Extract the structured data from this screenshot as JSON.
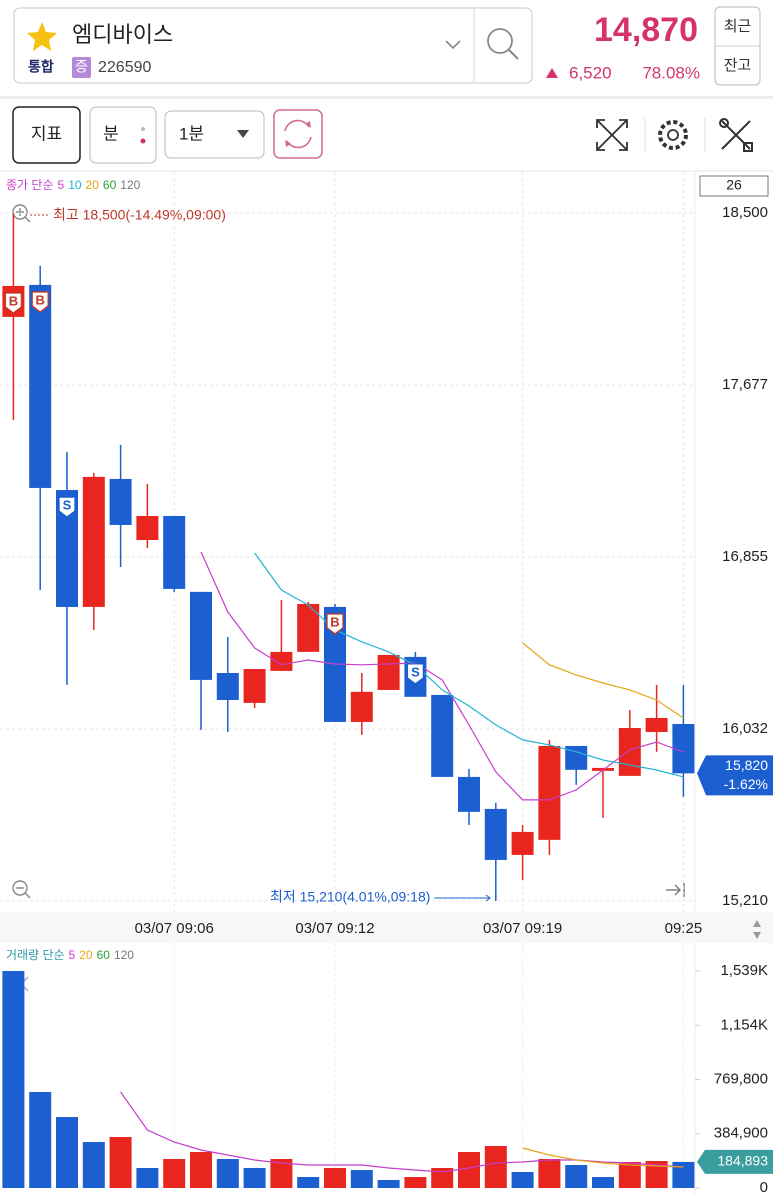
{
  "header": {
    "name": "엠디바이스",
    "market": "통합",
    "badge": "증",
    "code": "226590",
    "price": "14,870",
    "change": "6,520",
    "change_rate": "78.08%",
    "buttons": [
      "최근",
      "잔고"
    ]
  },
  "toolbar": {
    "indicator": "지표",
    "unit": "분",
    "interval": "1분"
  },
  "chart_data": [
    {
      "type": "candlestick",
      "legend_label": "종가 단순",
      "count_label": "26",
      "categories": [
        null,
        null,
        null,
        null,
        null,
        null,
        "03/07 09:06",
        null,
        null,
        null,
        null,
        null,
        "03/07 09:12",
        null,
        null,
        null,
        null,
        null,
        null,
        "03/07 09:19",
        null,
        null,
        null,
        null,
        null,
        "09:25"
      ],
      "open": [
        18003,
        18156,
        17175,
        16616,
        17228,
        16936,
        17051,
        16688,
        16300,
        16157,
        16310,
        16401,
        16616,
        16066,
        16219,
        16377,
        16195,
        15803,
        15650,
        15430,
        15502,
        15951,
        15832,
        15808,
        16018,
        16056
      ],
      "high": [
        18500,
        18247,
        17357,
        17257,
        17391,
        17204,
        17051,
        16688,
        16472,
        16319,
        16649,
        16640,
        16630,
        16300,
        16386,
        16401,
        16195,
        15841,
        15679,
        15573,
        15980,
        15951,
        15846,
        16123,
        16243,
        16243
      ],
      "low": [
        17510,
        16697,
        16243,
        16506,
        16807,
        16898,
        16688,
        16028,
        16018,
        16133,
        16310,
        16401,
        16066,
        16004,
        16219,
        16186,
        15803,
        15573,
        15210,
        15310,
        15430,
        15765,
        15607,
        15808,
        15923,
        15708
      ],
      "close": [
        18151,
        17185,
        16616,
        17238,
        17008,
        17051,
        16702,
        16267,
        16171,
        16319,
        16401,
        16630,
        16066,
        16210,
        16386,
        16186,
        15803,
        15636,
        15406,
        15540,
        15951,
        15837,
        15846,
        16037,
        16085,
        15820
      ],
      "up_color": "#e8251f",
      "down_color": "#1c5fd0",
      "series": [
        {
          "name": "5",
          "color": "#c63fc9",
          "values": [
            null,
            null,
            null,
            null,
            null,
            null,
            null,
            16879,
            16592,
            16420,
            16339,
            16362,
            16343,
            16339,
            16343,
            16348,
            16267,
            16052,
            15827,
            15693,
            15693,
            15741,
            15836,
            15932,
            15970,
            15922
          ]
        },
        {
          "name": "10",
          "color": "#25b4d2",
          "values": [
            null,
            null,
            null,
            null,
            null,
            null,
            null,
            null,
            null,
            16874,
            16697,
            16625,
            16506,
            16449,
            16401,
            16339,
            16219,
            16142,
            16052,
            15980,
            15956,
            15923,
            15884,
            15860,
            15836,
            15803
          ]
        },
        {
          "name": "20",
          "color": "#e8a317",
          "values": [
            null,
            null,
            null,
            null,
            null,
            null,
            null,
            null,
            null,
            null,
            null,
            null,
            null,
            null,
            null,
            null,
            null,
            null,
            null,
            16444,
            16339,
            16291,
            16252,
            16219,
            16171,
            16085
          ]
        },
        {
          "name": "60",
          "color": "#2a9d3a",
          "values": [
            null,
            null,
            null,
            null,
            null,
            null,
            null,
            null,
            null,
            null,
            null,
            null,
            null,
            null,
            null,
            null,
            null,
            null,
            null,
            null,
            null,
            null,
            null,
            null,
            null,
            null
          ]
        },
        {
          "name": "120",
          "color": "#777777",
          "values": [
            null,
            null,
            null,
            null,
            null,
            null,
            null,
            null,
            null,
            null,
            null,
            null,
            null,
            null,
            null,
            null,
            null,
            null,
            null,
            null,
            null,
            null,
            null,
            null,
            null,
            null
          ]
        }
      ],
      "signals": [
        "B",
        "B",
        "S",
        null,
        null,
        null,
        null,
        null,
        null,
        null,
        null,
        null,
        "B",
        null,
        null,
        "S",
        null,
        null,
        null,
        null,
        null,
        null,
        null,
        null,
        null,
        null
      ],
      "ylim": [
        15157,
        18696
      ],
      "yticks": [
        {
          "value": 15210,
          "label": "15,210"
        },
        {
          "value": 16032,
          "label": "16,032"
        },
        {
          "value": 16855,
          "label": "16,855"
        },
        {
          "value": 17677,
          "label": "17,677"
        },
        {
          "value": 18500,
          "label": "18,500"
        }
      ],
      "grid": true,
      "high_annotation": "최고 18,500(-14.49%,09:00)",
      "low_annotation": "최저 15,210(4.01%,09:18)",
      "last_price_label": "15,820",
      "last_change_label": "-1.62%"
    },
    {
      "type": "bar",
      "legend_label": "거래량 단순",
      "values": [
        1539000,
        680800,
        503500,
        326200,
        361700,
        141800,
        205700,
        255300,
        205700,
        141800,
        205700,
        78000,
        141800,
        127700,
        56700,
        78000,
        141800,
        255300,
        297900,
        113500,
        205700,
        163100,
        78000,
        184400,
        191500,
        184893
      ],
      "colors": [
        "#1c5fd0",
        "#1c5fd0",
        "#1c5fd0",
        "#1c5fd0",
        "#e8251f",
        "#1c5fd0",
        "#e8251f",
        "#e8251f",
        "#1c5fd0",
        "#1c5fd0",
        "#e8251f",
        "#1c5fd0",
        "#e8251f",
        "#1c5fd0",
        "#1c5fd0",
        "#e8251f",
        "#e8251f",
        "#e8251f",
        "#e8251f",
        "#1c5fd0",
        "#e8251f",
        "#1c5fd0",
        "#1c5fd0",
        "#e8251f",
        "#e8251f",
        "#1c5fd0"
      ],
      "series": [
        {
          "name": "5",
          "color": "#c63fc9",
          "values": [
            null,
            null,
            null,
            null,
            680800,
            411300,
            326200,
            269500,
            234000,
            198600,
            177300,
            163100,
            163100,
            163100,
            141800,
            127700,
            113500,
            141800,
            177300,
            184400,
            198600,
            198600,
            184400,
            177300,
            163100,
            148900
          ]
        },
        {
          "name": "20",
          "color": "#e8a317",
          "values": [
            null,
            null,
            null,
            null,
            null,
            null,
            null,
            null,
            null,
            null,
            null,
            null,
            null,
            null,
            null,
            null,
            null,
            null,
            null,
            283700,
            234000,
            198600,
            177300,
            163100,
            156000,
            148900
          ]
        },
        {
          "name": "60",
          "color": "#2a9d3a",
          "values": [
            null,
            null,
            null,
            null,
            null,
            null,
            null,
            null,
            null,
            null,
            null,
            null,
            null,
            null,
            null,
            null,
            null,
            null,
            null,
            null,
            null,
            null,
            null,
            null,
            null,
            null
          ]
        },
        {
          "name": "120",
          "color": "#777777",
          "values": [
            null,
            null,
            null,
            null,
            null,
            null,
            null,
            null,
            null,
            null,
            null,
            null,
            null,
            null,
            null,
            null,
            null,
            null,
            null,
            null,
            null,
            null,
            null,
            null,
            null,
            null
          ]
        }
      ],
      "ylim": [
        -49600,
        1723400
      ],
      "yticks": [
        0,
        {
          "value": 384900,
          "label": "384,900"
        },
        {
          "value": 769800,
          "label": "769,800"
        },
        {
          "value": 1154000,
          "label": "1,154K"
        },
        {
          "value": 1539000,
          "label": "1,539K"
        }
      ],
      "last_label": "184,893"
    }
  ]
}
